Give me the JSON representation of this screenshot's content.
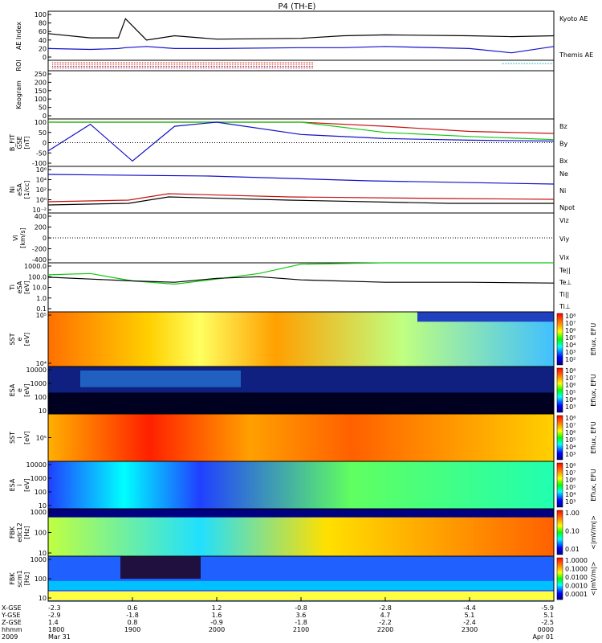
{
  "title": "P4 (TH-E)",
  "colors": {
    "black": "#000000",
    "blue": "#1010c8",
    "red": "#c81010",
    "green": "#10c810",
    "cyan": "#00b4b4",
    "orange": "#e06000",
    "purple": "#8000a0"
  },
  "panels": [
    {
      "id": "ae",
      "ylabel_lines": [
        "AE Index"
      ],
      "ticks": [
        "100",
        "80",
        "60",
        "40",
        "20",
        "0"
      ],
      "legend": [
        {
          "text": "Kyoto AE",
          "color": "blue"
        },
        {
          "text": "Themis AE",
          "color": "black"
        }
      ]
    },
    {
      "id": "roi",
      "ylabel_lines": [
        "ROI"
      ],
      "ticks": [],
      "legend": []
    },
    {
      "id": "keogram",
      "ylabel_lines": [
        "Keogram"
      ],
      "ticks": [
        "250",
        "200",
        "150",
        "100",
        "50",
        "0"
      ],
      "legend": []
    },
    {
      "id": "bfit",
      "ylabel_lines": [
        "B_FIT",
        "GSE",
        "[nT]"
      ],
      "ticks": [
        "100",
        "50",
        "0",
        "-50",
        "-100"
      ],
      "legend": [
        {
          "text": "Bz",
          "color": "red"
        },
        {
          "text": "By",
          "color": "green"
        },
        {
          "text": "Bx",
          "color": "blue"
        }
      ]
    },
    {
      "id": "ni",
      "ylabel_lines": [
        "Ni",
        "eSA",
        "[1/cc]"
      ],
      "ticks": [
        "10⁶",
        "10⁴",
        "10²",
        "10⁰",
        "10⁻²"
      ],
      "legend": [
        {
          "text": "Ne",
          "color": "red"
        },
        {
          "text": "Ni",
          "color": "black"
        },
        {
          "text": "Npot",
          "color": "blue"
        }
      ]
    },
    {
      "id": "vi",
      "ylabel_lines": [
        "Vi",
        "[km/s]"
      ],
      "ticks": [
        "400",
        "200",
        "0",
        "-200",
        "-400"
      ],
      "legend": [
        {
          "text": "Viz",
          "color": "red"
        },
        {
          "text": "Viy",
          "color": "green"
        },
        {
          "text": "Vix",
          "color": "blue"
        }
      ]
    },
    {
      "id": "ti",
      "ylabel_lines": [
        "Ti",
        "eSA",
        "[eV]"
      ],
      "ticks": [
        "1000.0",
        "100.0",
        "10.0",
        "1.0",
        "0.1"
      ],
      "legend": [
        {
          "text": "Te||",
          "color": "black"
        },
        {
          "text": "Te⊥",
          "color": "red"
        },
        {
          "text": "Ti||",
          "color": "green"
        },
        {
          "text": "Ti⊥",
          "color": "blue"
        }
      ]
    },
    {
      "id": "sst_e",
      "ylabel_lines": [
        "SST",
        "e",
        "[eV]"
      ],
      "ticks": [
        "10⁵",
        "10⁴"
      ],
      "colorbar": "rainbow",
      "cb_ticks": [
        "10⁸",
        "10⁷",
        "10⁶",
        "10⁵",
        "10⁴",
        "10³",
        "10²"
      ],
      "cb_label": "Eflux, EFU"
    },
    {
      "id": "esa_e",
      "ylabel_lines": [
        "ESA",
        "e",
        "[eV]"
      ],
      "ticks": [
        "10000",
        "1000",
        "100",
        "10"
      ],
      "colorbar": "rainbow",
      "cb_ticks": [
        "10⁸",
        "10⁷",
        "10⁶",
        "10⁵",
        "10⁴",
        "10³"
      ],
      "cb_label": "Eflux, EFU"
    },
    {
      "id": "sst_i",
      "ylabel_lines": [
        "SST",
        "i",
        "[eV]"
      ],
      "ticks": [
        "10⁵"
      ],
      "colorbar": "rainbow",
      "cb_ticks": [
        "10⁸",
        "10⁷",
        "10⁶",
        "10⁵",
        "10⁴",
        "10³"
      ],
      "cb_label": "Eflux, EFU"
    },
    {
      "id": "esa_i",
      "ylabel_lines": [
        "ESA",
        "i",
        "[eV]"
      ],
      "ticks": [
        "10000",
        "1000",
        "100",
        "10"
      ],
      "colorbar": "rainbow",
      "cb_ticks": [
        "10⁸",
        "10⁷",
        "10⁶",
        "10⁵",
        "10⁴",
        "10³"
      ],
      "cb_label": "Eflux, EFU"
    },
    {
      "id": "fbk_edc",
      "ylabel_lines": [
        "FBK",
        "edc12",
        "[Hz]"
      ],
      "ticks": [
        "1000",
        "100",
        "10"
      ],
      "colorbar": "rainbow",
      "cb_ticks": [
        "1.00",
        "0.10",
        "0.01"
      ],
      "cb_label": "<|mV/m|>"
    },
    {
      "id": "fbk_scm",
      "ylabel_lines": [
        "FBK",
        "scm1",
        "[Hz]"
      ],
      "ticks": [
        "1000",
        "100",
        "10"
      ],
      "colorbar": "rainbow",
      "cb_ticks": [
        "1.0000",
        "0.1000",
        "0.0100",
        "0.0010",
        "0.0001"
      ],
      "cb_label": "<|mV/m|>"
    }
  ],
  "x_axis": {
    "row_labels": [
      "X-GSE",
      "Y-GSE",
      "Z-GSE",
      "hhmm",
      "2009"
    ],
    "columns": [
      [
        "-2.3",
        "-2.9",
        "1.4",
        "1800",
        "Mar 31"
      ],
      [
        "0.6",
        "-1.8",
        "0.8",
        "1900",
        ""
      ],
      [
        "1.2",
        "1.6",
        "-0.9",
        "2000",
        ""
      ],
      [
        "-0.8",
        "3.6",
        "-1.8",
        "2100",
        ""
      ],
      [
        "-2.8",
        "4.7",
        "-2.2",
        "2200",
        ""
      ],
      [
        "-4.4",
        "5.1",
        "-2.4",
        "2300",
        ""
      ],
      [
        "-5.9",
        "5.1",
        "-2.5",
        "0000",
        "Apr 01"
      ]
    ]
  },
  "chart_data": [
    {
      "type": "line",
      "title": "AE Index",
      "ylim": [
        0,
        100
      ],
      "x": [
        1800,
        1830,
        1850,
        1855,
        1910,
        1930,
        2000,
        2100,
        2130,
        2200,
        2300,
        2330,
        2400
      ],
      "series": [
        {
          "name": "Themis AE",
          "values": [
            55,
            45,
            45,
            90,
            40,
            50,
            42,
            44,
            50,
            52,
            50,
            48,
            50
          ]
        },
        {
          "name": "Kyoto AE",
          "values": [
            20,
            18,
            20,
            22,
            25,
            20,
            20,
            22,
            22,
            25,
            20,
            10,
            25
          ]
        }
      ]
    },
    {
      "type": "line",
      "title": "B_FIT GSE [nT]",
      "ylim": [
        -100,
        100
      ],
      "x": [
        1800,
        1830,
        1900,
        1930,
        2000,
        2100,
        2200,
        2300,
        2400
      ],
      "series": [
        {
          "name": "Bz",
          "values": [
            100,
            100,
            100,
            100,
            100,
            100,
            80,
            55,
            45
          ]
        },
        {
          "name": "By",
          "values": [
            100,
            100,
            100,
            100,
            100,
            100,
            50,
            30,
            15
          ]
        },
        {
          "name": "Bx",
          "values": [
            -40,
            90,
            -90,
            80,
            100,
            40,
            20,
            12,
            8
          ]
        }
      ]
    },
    {
      "type": "line",
      "title": "Ti eSA [eV]",
      "x": [
        1800,
        1830,
        1900,
        1930,
        2000,
        2030,
        2100,
        2200,
        2300,
        2400
      ],
      "series": [
        {
          "name": "Ti||",
          "values": [
            150,
            200,
            40,
            20,
            60,
            200,
            1500,
            2000,
            2000,
            2000
          ]
        },
        {
          "name": "Te||",
          "values": [
            90,
            60,
            40,
            30,
            70,
            100,
            50,
            30,
            30,
            25
          ]
        }
      ]
    }
  ]
}
